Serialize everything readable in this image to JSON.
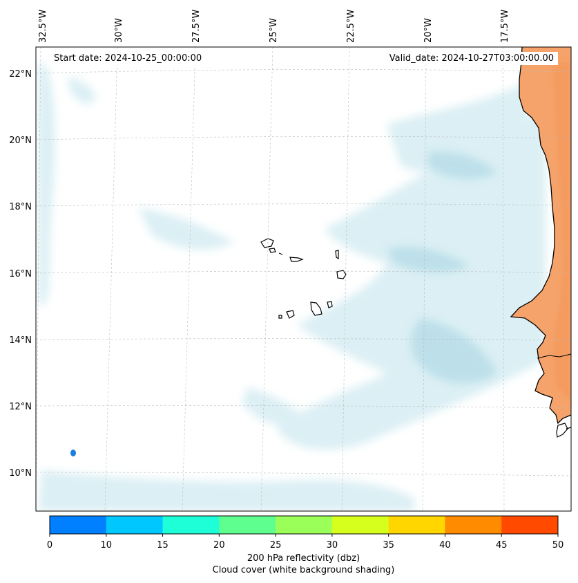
{
  "annotations": {
    "start_date": "Start date: 2024-10-25_00:00:00",
    "valid_date": "Valid_date: 2024-10-27T03:00:00.00"
  },
  "map": {
    "lon_labels": [
      "32.5°W",
      "30°W",
      "27.5°W",
      "25°W",
      "22.5°W",
      "20°W",
      "17.5°W"
    ],
    "lat_labels": [
      "22°N",
      "20°N",
      "18°N",
      "16°N",
      "14°N",
      "12°N",
      "10°N"
    ],
    "land_color": "#f5a36a",
    "cloud_color": "#bfe3ec",
    "coast_color": "#000000",
    "gridline_color": "#bbbbbb"
  },
  "colorbar": {
    "ticks": [
      "0",
      "10",
      "15",
      "20",
      "25",
      "30",
      "35",
      "40",
      "45",
      "50"
    ],
    "colors": [
      "#007fff",
      "#00c8ff",
      "#1effd8",
      "#5fff8f",
      "#9bff5a",
      "#d7ff1e",
      "#ffd600",
      "#ff8b00",
      "#ff4a00"
    ],
    "label_line1": "200 hPa reflectivity (dbz)",
    "label_line2": "Cloud cover (white background shading)"
  },
  "echo_marker_color": "#1a7fe0"
}
